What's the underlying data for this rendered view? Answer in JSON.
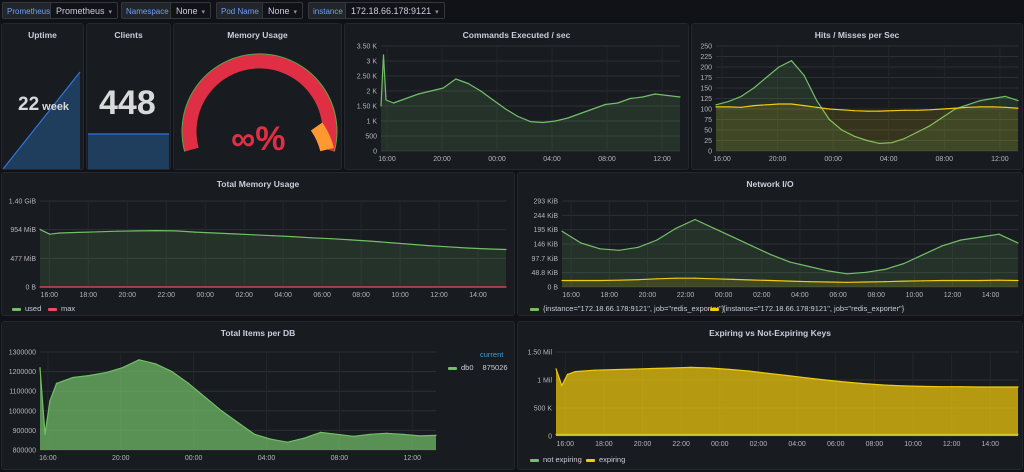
{
  "variables": [
    {
      "label": "Prometheus",
      "value": "Prometheus"
    },
    {
      "label": "Namespace",
      "value": "None"
    },
    {
      "label": "Pod Name",
      "value": "None"
    },
    {
      "label": "instance",
      "value": "172.18.66.178:9121"
    }
  ],
  "chevron": "▾",
  "colors": {
    "green": "#73bf69",
    "yellow": "#f2cc0c",
    "red": "#f2495c",
    "blue": "#1f60c4",
    "orange": "#ff9830",
    "gauge_red": "#e02f44"
  },
  "uptime": {
    "title": "Uptime",
    "value": "22",
    "unit": "week"
  },
  "clients": {
    "title": "Clients",
    "value": "448"
  },
  "memory_usage": {
    "title": "Memory Usage",
    "value": "∞%"
  },
  "commands": {
    "title": "Commands Executed / sec"
  },
  "hits": {
    "title": "Hits / Misses per Sec"
  },
  "total_memory": {
    "title": "Total Memory Usage",
    "legend": [
      {
        "name": "used",
        "color": "#73bf69"
      },
      {
        "name": "max",
        "color": "#f2495c"
      }
    ]
  },
  "network": {
    "title": "Network I/O",
    "legend": [
      {
        "name": "{instance=\"172.18.66.178:9121\", job=\"redis_exporter\"}",
        "color": "#73bf69"
      },
      {
        "name": "{instance=\"172.18.66.178:9121\", job=\"redis_exporter\"}",
        "color": "#f2cc0c"
      }
    ]
  },
  "items": {
    "title": "Total Items per DB",
    "legend_header": "current",
    "legend": [
      {
        "name": "db0",
        "value": "875026",
        "color": "#73bf69"
      }
    ]
  },
  "expiring": {
    "title": "Expiring vs Not-Expiring Keys",
    "legend": [
      {
        "name": "not expiring",
        "color": "#73bf69"
      },
      {
        "name": "expiring",
        "color": "#f2cc0c"
      }
    ]
  },
  "chart_data": [
    {
      "id": "commands",
      "type": "line",
      "title": "Commands Executed / sec",
      "yticks": [
        "0",
        "500",
        "1 K",
        "1.50 K",
        "2 K",
        "2.50 K",
        "3 K",
        "3.50 K"
      ],
      "ylim": [
        0,
        3500
      ],
      "xticks": [
        "16:00",
        "20:00",
        "00:00",
        "04:00",
        "08:00",
        "12:00"
      ],
      "x": [
        0,
        0.2,
        0.4,
        1,
        2,
        3,
        4,
        5,
        6,
        7,
        8,
        9,
        10,
        11,
        12,
        13,
        14,
        15,
        16,
        17,
        18,
        19,
        20,
        21,
        22,
        23,
        24
      ],
      "series": [
        {
          "values": [
            1500,
            3200,
            1700,
            1600,
            1750,
            1900,
            2000,
            2100,
            2400,
            2250,
            2000,
            1700,
            1400,
            1150,
            980,
            950,
            1000,
            1100,
            1250,
            1400,
            1550,
            1600,
            1750,
            1800,
            1900,
            1850,
            1800
          ],
          "color": "#73bf69"
        }
      ]
    },
    {
      "id": "hits",
      "type": "line",
      "title": "Hits / Misses per Sec",
      "yticks": [
        "0",
        "25",
        "50",
        "75",
        "100",
        "125",
        "150",
        "175",
        "200",
        "225",
        "250"
      ],
      "ylim": [
        0,
        250
      ],
      "xticks": [
        "16:00",
        "20:00",
        "00:00",
        "04:00",
        "08:00",
        "12:00"
      ],
      "x": [
        0,
        1,
        2,
        3,
        4,
        5,
        6,
        7,
        8,
        9,
        10,
        11,
        12,
        13,
        14,
        15,
        16,
        17,
        18,
        19,
        20,
        21,
        22,
        23,
        24
      ],
      "series": [
        {
          "values": [
            110,
            118,
            130,
            150,
            175,
            200,
            215,
            180,
            120,
            75,
            50,
            35,
            25,
            18,
            20,
            30,
            45,
            60,
            80,
            100,
            110,
            120,
            125,
            130,
            120
          ],
          "color": "#73bf69"
        },
        {
          "values": [
            105,
            105,
            104,
            108,
            110,
            112,
            112,
            108,
            104,
            100,
            98,
            96,
            95,
            95,
            96,
            97,
            97,
            98,
            100,
            102,
            104,
            105,
            105,
            104,
            102
          ],
          "color": "#f2cc0c"
        }
      ]
    },
    {
      "id": "total_memory",
      "type": "line",
      "title": "Total Memory Usage",
      "yticks": [
        "0 B",
        "477 MiB",
        "954 MiB",
        "1.40 GiB"
      ],
      "ylim": [
        0,
        1434
      ],
      "xticks": [
        "16:00",
        "18:00",
        "20:00",
        "22:00",
        "00:00",
        "02:00",
        "04:00",
        "06:00",
        "08:00",
        "10:00",
        "12:00",
        "14:00"
      ],
      "x": [
        0,
        0.5,
        1,
        2,
        3,
        4,
        5,
        6,
        7,
        8,
        9,
        10,
        11,
        12,
        13,
        14,
        15,
        16,
        17,
        18,
        19,
        20,
        21,
        22,
        23,
        24
      ],
      "series": [
        {
          "name": "used",
          "values": [
            960,
            880,
            900,
            910,
            920,
            930,
            935,
            940,
            935,
            915,
            900,
            885,
            870,
            855,
            840,
            820,
            805,
            785,
            765,
            740,
            715,
            690,
            670,
            650,
            635,
            625
          ],
          "color": "#73bf69"
        },
        {
          "name": "max",
          "values": [
            0,
            0,
            0,
            0,
            0,
            0,
            0,
            0,
            0,
            0,
            0,
            0,
            0,
            0,
            0,
            0,
            0,
            0,
            0,
            0,
            0,
            0,
            0,
            0,
            0,
            0
          ],
          "color": "#f2495c"
        }
      ]
    },
    {
      "id": "network",
      "type": "line",
      "title": "Network I/O",
      "yticks": [
        "0 B",
        "48.8 KiB",
        "97.7 KiB",
        "146 KiB",
        "195 KiB",
        "244 KiB",
        "293 KiB"
      ],
      "ylim": [
        0,
        293
      ],
      "xticks": [
        "16:00",
        "18:00",
        "20:00",
        "22:00",
        "00:00",
        "02:00",
        "04:00",
        "06:00",
        "08:00",
        "10:00",
        "12:00",
        "14:00"
      ],
      "x": [
        0,
        1,
        2,
        3,
        4,
        5,
        6,
        7,
        8,
        9,
        10,
        11,
        12,
        13,
        14,
        15,
        16,
        17,
        18,
        19,
        20,
        21,
        22,
        23,
        24
      ],
      "series": [
        {
          "values": [
            190,
            150,
            130,
            125,
            135,
            160,
            200,
            230,
            200,
            170,
            140,
            110,
            85,
            70,
            55,
            45,
            50,
            60,
            80,
            110,
            140,
            160,
            170,
            180,
            150
          ],
          "color": "#73bf69"
        },
        {
          "values": [
            22,
            22,
            22,
            23,
            25,
            28,
            30,
            30,
            28,
            26,
            24,
            22,
            20,
            18,
            17,
            16,
            17,
            18,
            20,
            21,
            22,
            22,
            22,
            23,
            22
          ],
          "color": "#f2cc0c"
        }
      ]
    },
    {
      "id": "items",
      "type": "area",
      "title": "Total Items per DB",
      "yticks": [
        "800000",
        "900000",
        "1000000",
        "1100000",
        "1200000",
        "1300000"
      ],
      "ylim": [
        800000,
        1300000
      ],
      "xticks": [
        "16:00",
        "20:00",
        "00:00",
        "04:00",
        "08:00",
        "12:00"
      ],
      "x": [
        0,
        0.3,
        0.6,
        1,
        2,
        3,
        4,
        5,
        6,
        7,
        8,
        9,
        10,
        11,
        12,
        13,
        14,
        15,
        16,
        17,
        18,
        19,
        20,
        21,
        22,
        23,
        24
      ],
      "series": [
        {
          "name": "db0",
          "values": [
            1220000,
            880000,
            1050000,
            1140000,
            1170000,
            1180000,
            1195000,
            1220000,
            1260000,
            1240000,
            1200000,
            1140000,
            1070000,
            1000000,
            940000,
            880000,
            855000,
            840000,
            860000,
            890000,
            880000,
            870000,
            880000,
            885000,
            880000,
            872000,
            875026
          ],
          "color": "#73bf69"
        }
      ]
    },
    {
      "id": "expiring",
      "type": "area",
      "title": "Expiring vs Not-Expiring Keys",
      "yticks": [
        "0",
        "500 K",
        "1 Mil",
        "1.50 Mil"
      ],
      "ylim": [
        0,
        1500000
      ],
      "xticks": [
        "16:00",
        "18:00",
        "20:00",
        "22:00",
        "00:00",
        "02:00",
        "04:00",
        "06:00",
        "08:00",
        "10:00",
        "12:00",
        "14:00"
      ],
      "x": [
        0,
        0.3,
        0.6,
        1,
        2,
        3,
        4,
        5,
        6,
        7,
        8,
        9,
        10,
        11,
        12,
        13,
        14,
        15,
        16,
        17,
        18,
        19,
        20,
        21,
        22,
        23,
        24
      ],
      "series": [
        {
          "name": "not expiring",
          "values": [
            30000,
            30000,
            30000,
            30000,
            30000,
            30000,
            30000,
            30000,
            30000,
            30000,
            30000,
            30000,
            30000,
            30000,
            30000,
            30000,
            30000,
            30000,
            30000,
            30000,
            30000,
            30000,
            30000,
            30000,
            30000,
            30000,
            30000
          ],
          "color": "#73bf69"
        },
        {
          "name": "expiring",
          "values": [
            1200000,
            900000,
            1100000,
            1150000,
            1175000,
            1185000,
            1195000,
            1205000,
            1215000,
            1225000,
            1215000,
            1190000,
            1160000,
            1120000,
            1080000,
            1040000,
            1000000,
            965000,
            935000,
            910000,
            895000,
            885000,
            880000,
            880000,
            875000,
            875000,
            875000
          ],
          "color": "#f2cc0c"
        }
      ]
    }
  ]
}
